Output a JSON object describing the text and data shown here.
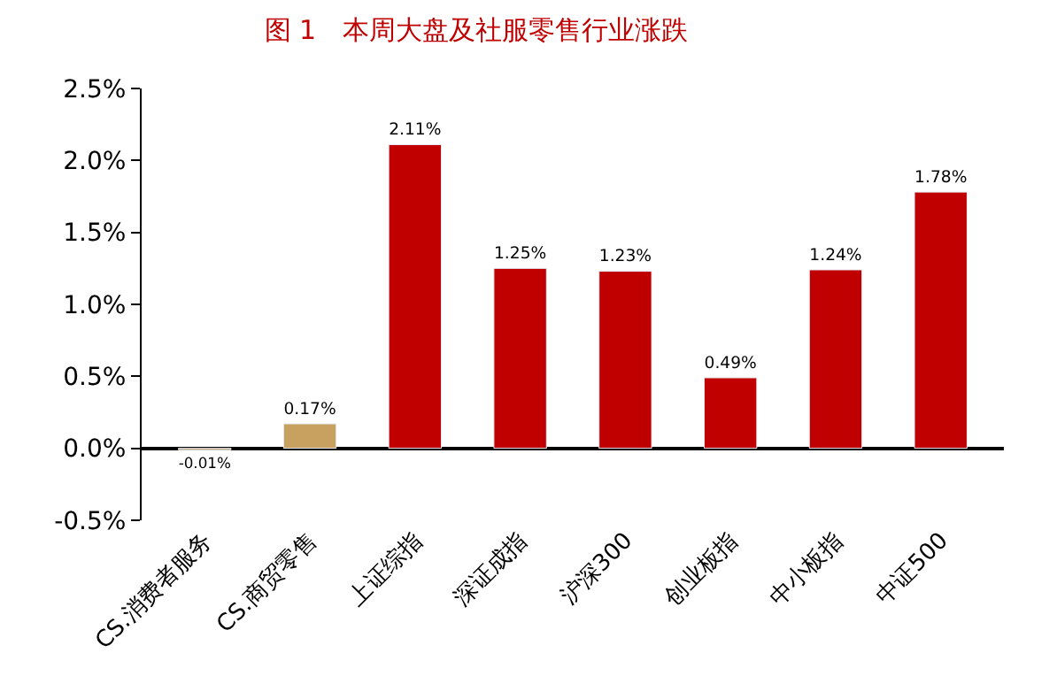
{
  "chart_data": {
    "type": "bar",
    "title": "图 1　本周大盘及社服零售行业涨跌",
    "categories": [
      "CS.消费者服务",
      "CS.商贸零售",
      "上证综指",
      "深证成指",
      "沪深300",
      "创业板指",
      "中小板指",
      "中证500"
    ],
    "values": [
      -0.01,
      0.17,
      2.11,
      1.25,
      1.23,
      0.49,
      1.24,
      1.78
    ],
    "value_labels": [
      "-0.01%",
      "0.17%",
      "2.11%",
      "1.25%",
      "1.23%",
      "0.49%",
      "1.24%",
      "1.78%"
    ],
    "colors": [
      "#c8a05f",
      "#c8a05f",
      "#c00000",
      "#c00000",
      "#c00000",
      "#c00000",
      "#c00000",
      "#c00000"
    ],
    "ylim": [
      -0.5,
      2.5
    ],
    "yticks": [
      {
        "value": -0.5,
        "label": "-0.5%"
      },
      {
        "value": 0,
        "label": "0.0%"
      },
      {
        "value": 0.5,
        "label": "0.5%"
      },
      {
        "value": 1,
        "label": "1.0%"
      },
      {
        "value": 1.5,
        "label": "1.5%"
      },
      {
        "value": 2,
        "label": "2.0%"
      },
      {
        "value": 2.5,
        "label": "2.5%"
      }
    ],
    "tick_labels": "xy"
  }
}
